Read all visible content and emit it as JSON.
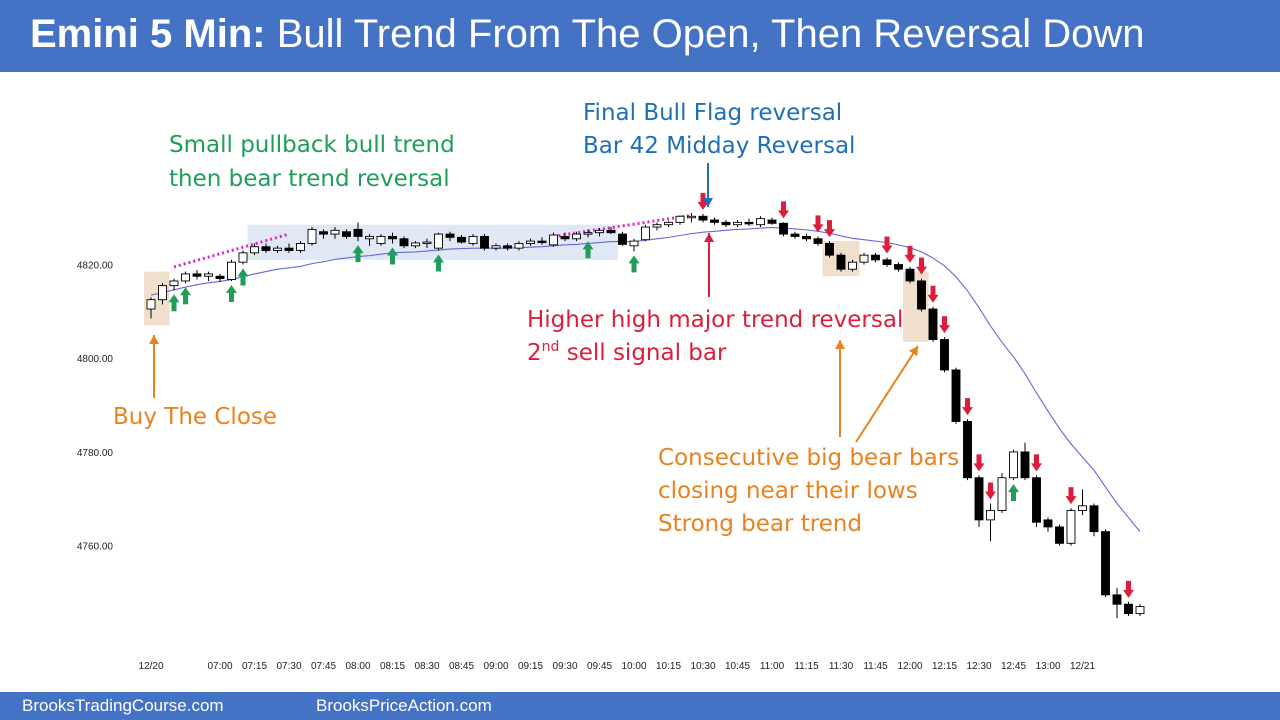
{
  "title": {
    "bold": "Emini 5 Min:",
    "rest": "Bull Trend From The Open, Then Reversal Down"
  },
  "footer": {
    "left": "BrooksTradingCourse.com",
    "right": "BrooksPriceAction.com"
  },
  "colors": {
    "header": "#4472c4",
    "green": "#1e9e5a",
    "red": "#dc1e3c",
    "orange": "#e8821e",
    "blue": "#1f6fb8",
    "ema": "#6666dd",
    "magenta": "#e020c8"
  },
  "chart_data": {
    "type": "candlestick",
    "title": "",
    "ylim": [
      4742,
      4831
    ],
    "yticks": [
      {
        "value": 4760,
        "label": "4760.00"
      },
      {
        "value": 4780,
        "label": "4780.00"
      },
      {
        "value": 4800,
        "label": "4800.00"
      },
      {
        "value": 4820,
        "label": "4820.00"
      }
    ],
    "xtick_labels": [
      "12/20",
      "07:00",
      "07:15",
      "07:30",
      "07:45",
      "08:00",
      "08:15",
      "08:30",
      "08:45",
      "09:00",
      "09:15",
      "09:30",
      "09:45",
      "10:00",
      "10:15",
      "10:30",
      "10:45",
      "11:00",
      "11:15",
      "11:30",
      "11:45",
      "12:00",
      "12:15",
      "12:30",
      "12:45",
      "13:00",
      "12/21"
    ],
    "xtick_bar_index": [
      0,
      6,
      9,
      12,
      15,
      18,
      21,
      24,
      27,
      30,
      33,
      36,
      39,
      42,
      45,
      48,
      51,
      54,
      57,
      60,
      63,
      66,
      69,
      72,
      75,
      78,
      81
    ],
    "bars": [
      [
        4810.5,
        4813.0,
        4808.5,
        4812.5
      ],
      [
        4812.5,
        4816.0,
        4811.5,
        4815.5
      ],
      [
        4815.5,
        4817.0,
        4814.5,
        4816.5
      ],
      [
        4816.5,
        4818.5,
        4816.0,
        4818.0
      ],
      [
        4818.0,
        4818.8,
        4816.8,
        4817.5
      ],
      [
        4817.5,
        4818.5,
        4816.5,
        4818.0
      ],
      [
        4817.5,
        4818.0,
        4816.3,
        4817.0
      ],
      [
        4816.8,
        4821.0,
        4816.5,
        4820.5
      ],
      [
        4820.5,
        4823.0,
        4820.0,
        4822.5
      ],
      [
        4822.5,
        4824.5,
        4822.0,
        4823.8
      ],
      [
        4823.8,
        4824.5,
        4822.5,
        4823.0
      ],
      [
        4823.0,
        4824.0,
        4822.5,
        4823.5
      ],
      [
        4823.5,
        4824.5,
        4822.5,
        4823.0
      ],
      [
        4823.0,
        4825.0,
        4822.5,
        4824.5
      ],
      [
        4824.5,
        4828.0,
        4824.0,
        4827.5
      ],
      [
        4827.0,
        4827.5,
        4825.5,
        4826.5
      ],
      [
        4826.5,
        4828.0,
        4825.5,
        4827.3
      ],
      [
        4827.0,
        4827.5,
        4825.5,
        4826.0
      ],
      [
        4827.5,
        4829.0,
        4825.0,
        4826.0
      ],
      [
        4825.5,
        4826.5,
        4824.0,
        4826.0
      ],
      [
        4824.5,
        4826.5,
        4824.0,
        4826.0
      ],
      [
        4826.0,
        4826.8,
        4824.5,
        4825.5
      ],
      [
        4825.5,
        4826.0,
        4823.5,
        4824.0
      ],
      [
        4824.0,
        4825.0,
        4823.5,
        4824.6
      ],
      [
        4824.5,
        4825.5,
        4823.5,
        4824.8
      ],
      [
        4823.5,
        4826.8,
        4823.0,
        4826.5
      ],
      [
        4826.5,
        4827.0,
        4825.0,
        4825.8
      ],
      [
        4825.8,
        4826.3,
        4824.5,
        4824.8
      ],
      [
        4824.5,
        4826.5,
        4824.0,
        4826.0
      ],
      [
        4826.0,
        4826.5,
        4823.0,
        4823.5
      ],
      [
        4823.5,
        4824.5,
        4823.0,
        4824.0
      ],
      [
        4824.0,
        4824.5,
        4823.0,
        4823.5
      ],
      [
        4823.5,
        4825.0,
        4823.0,
        4824.5
      ],
      [
        4824.5,
        4825.5,
        4824.0,
        4825.0
      ],
      [
        4825.0,
        4825.8,
        4824.2,
        4824.8
      ],
      [
        4824.2,
        4826.8,
        4823.8,
        4826.3
      ],
      [
        4826.0,
        4826.8,
        4825.0,
        4825.5
      ],
      [
        4825.5,
        4827.0,
        4825.0,
        4826.5
      ],
      [
        4826.5,
        4827.5,
        4825.8,
        4826.8
      ],
      [
        4826.8,
        4827.8,
        4826.0,
        4827.3
      ],
      [
        4827.3,
        4828.0,
        4826.5,
        4826.8
      ],
      [
        4826.5,
        4827.0,
        4824.0,
        4824.3
      ],
      [
        4824.0,
        4825.5,
        4822.8,
        4825.0
      ],
      [
        4825.3,
        4828.5,
        4825.0,
        4828.0
      ],
      [
        4828.0,
        4829.0,
        4827.3,
        4828.5
      ],
      [
        4828.5,
        4829.3,
        4828.0,
        4829.0
      ],
      [
        4829.0,
        4830.5,
        4828.5,
        4830.3
      ],
      [
        4830.0,
        4831.0,
        4829.0,
        4830.3
      ],
      [
        4830.3,
        4830.8,
        4829.0,
        4829.5
      ],
      [
        4829.5,
        4830.0,
        4828.5,
        4829.0
      ],
      [
        4829.0,
        4829.5,
        4828.0,
        4828.5
      ],
      [
        4828.5,
        4829.5,
        4828.0,
        4829.0
      ],
      [
        4829.0,
        4829.8,
        4828.2,
        4828.8
      ],
      [
        4828.5,
        4830.3,
        4828.0,
        4829.8
      ],
      [
        4829.5,
        4830.0,
        4828.5,
        4828.8
      ],
      [
        4828.8,
        4829.0,
        4826.0,
        4826.5
      ],
      [
        4826.5,
        4827.0,
        4825.5,
        4826.0
      ],
      [
        4826.0,
        4826.5,
        4825.0,
        4825.5
      ],
      [
        4825.5,
        4826.0,
        4824.0,
        4824.5
      ],
      [
        4824.5,
        4825.0,
        4821.5,
        4822.0
      ],
      [
        4822.0,
        4822.5,
        4818.5,
        4819.0
      ],
      [
        4819.0,
        4821.0,
        4818.5,
        4820.5
      ],
      [
        4820.5,
        4822.5,
        4820.0,
        4822.0
      ],
      [
        4822.0,
        4822.5,
        4820.5,
        4821.0
      ],
      [
        4821.0,
        4821.5,
        4819.5,
        4820.0
      ],
      [
        4820.0,
        4820.5,
        4818.5,
        4819.0
      ],
      [
        4819.0,
        4819.5,
        4816.0,
        4816.5
      ],
      [
        4816.5,
        4817.0,
        4810.0,
        4810.5
      ],
      [
        4810.5,
        4811.0,
        4803.5,
        4804.0
      ],
      [
        4804.0,
        4804.5,
        4797.0,
        4797.5
      ],
      [
        4797.5,
        4798.0,
        4786.0,
        4786.5
      ],
      [
        4786.5,
        4787.0,
        4774.0,
        4774.5
      ],
      [
        4774.5,
        4775.0,
        4764.0,
        4765.5
      ],
      [
        4765.5,
        4769.0,
        4761.0,
        4767.5
      ],
      [
        4767.5,
        4775.5,
        4767.0,
        4774.5
      ],
      [
        4774.5,
        4780.5,
        4774.0,
        4780.0
      ],
      [
        4780.0,
        4782.0,
        4774.0,
        4774.5
      ],
      [
        4774.5,
        4775.0,
        4764.0,
        4765.0
      ],
      [
        4765.5,
        4766.0,
        4763.0,
        4764.0
      ],
      [
        4764.0,
        4764.5,
        4760.0,
        4760.5
      ],
      [
        4760.5,
        4768.0,
        4760.0,
        4767.5
      ],
      [
        4767.5,
        4772.0,
        4766.5,
        4768.5
      ],
      [
        4768.5,
        4769.0,
        4762.0,
        4763.0
      ],
      [
        4763.0,
        4763.5,
        4749.0,
        4749.5
      ],
      [
        4749.5,
        4751.0,
        4744.5,
        4747.5
      ],
      [
        4747.5,
        4748.0,
        4745.0,
        4745.5
      ],
      [
        4745.5,
        4747.5,
        4745.0,
        4747.0
      ]
    ],
    "ema": [
      4813.5,
      4814.0,
      4814.6,
      4815.2,
      4815.7,
      4816.1,
      4816.4,
      4816.8,
      4817.4,
      4818.0,
      4818.5,
      4819.0,
      4819.3,
      4819.6,
      4820.2,
      4820.6,
      4821.1,
      4821.4,
      4821.7,
      4821.9,
      4822.2,
      4822.5,
      4822.6,
      4822.7,
      4822.9,
      4823.1,
      4823.3,
      4823.4,
      4823.5,
      4823.5,
      4823.5,
      4823.5,
      4823.6,
      4823.7,
      4823.8,
      4824.0,
      4824.2,
      4824.3,
      4824.5,
      4824.7,
      4824.9,
      4824.9,
      4824.9,
      4825.2,
      4825.5,
      4825.8,
      4826.2,
      4826.6,
      4826.9,
      4827.1,
      4827.3,
      4827.5,
      4827.6,
      4827.8,
      4827.9,
      4827.8,
      4827.6,
      4827.4,
      4827.1,
      4826.7,
      4826.1,
      4825.6,
      4825.3,
      4825.0,
      4824.7,
      4824.2,
      4823.6,
      4822.7,
      4821.4,
      4819.7,
      4817.4,
      4814.4,
      4810.8,
      4806.9,
      4803.4,
      4800.3,
      4796.7,
      4792.6,
      4788.7,
      4785.0,
      4781.7,
      4778.9,
      4776.1,
      4772.5,
      4769.0,
      4766.0,
      4763.0
    ],
    "annotations": [
      {
        "text": "Small pullback bull trend",
        "color": "green"
      },
      {
        "text": "then bear trend reversal",
        "color": "green"
      },
      {
        "text": "Final Bull Flag reversal",
        "color": "blue"
      },
      {
        "text": "Bar 42 Midday Reversal",
        "color": "blue"
      },
      {
        "text": "Higher high major trend reversal",
        "color": "red"
      },
      {
        "text": "2",
        "sup": "nd",
        "rest": " sell signal bar",
        "color": "red"
      },
      {
        "text": "Buy The Close",
        "color": "orange"
      },
      {
        "text": "Consecutive big bear bars",
        "color": "orange"
      },
      {
        "text": "closing near their lows",
        "color": "orange"
      },
      {
        "text": "Strong bear trend",
        "color": "orange"
      }
    ],
    "shaded_ranges": [
      {
        "bars": [
          0,
          1
        ],
        "price": [
          4807.0,
          4818.5
        ],
        "color": "tan"
      },
      {
        "bars": [
          9,
          40
        ],
        "price": [
          4821.0,
          4828.5
        ],
        "color": "blue"
      },
      {
        "bars": [
          59,
          61
        ],
        "price": [
          4817.5,
          4825.0
        ],
        "color": "tan"
      },
      {
        "bars": [
          66,
          67
        ],
        "price": [
          4803.5,
          4818.5
        ],
        "color": "tan"
      }
    ],
    "trendlines": [
      {
        "from": [
          2,
          4819.5
        ],
        "to": [
          12,
          4826.5
        ],
        "color": "magenta"
      },
      {
        "from": [
          35,
          4826.0
        ],
        "to": [
          47,
          4830.5
        ],
        "color": "magenta"
      }
    ],
    "green_arrows_below_bars": [
      2,
      3,
      7,
      8,
      18,
      21,
      25,
      38,
      42,
      75
    ],
    "red_arrows_above_bars": [
      48,
      55,
      58,
      59,
      64,
      66,
      67,
      68,
      69,
      71,
      72,
      73,
      77,
      80,
      85
    ]
  }
}
